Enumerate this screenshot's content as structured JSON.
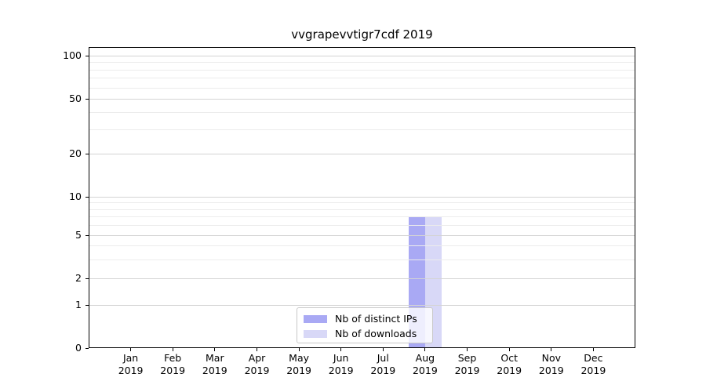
{
  "chart_data": {
    "type": "bar",
    "title": "vvgrapevvtigr7cdf 2019",
    "categories": [
      "Jan",
      "Feb",
      "Mar",
      "Apr",
      "May",
      "Jun",
      "Jul",
      "Aug",
      "Sep",
      "Oct",
      "Nov",
      "Dec"
    ],
    "x_tick_year": "2019",
    "series": [
      {
        "name": "Nb of distinct IPs",
        "color": "#a9a9f4",
        "values": [
          0,
          0,
          0,
          0,
          0,
          0,
          0,
          7,
          0,
          0,
          0,
          0
        ]
      },
      {
        "name": "Nb of downloads",
        "color": "#d8d8f7",
        "values": [
          0,
          0,
          0,
          0,
          0,
          0,
          0,
          7,
          0,
          0,
          0,
          0
        ]
      }
    ],
    "y_axis": {
      "scale": "symlog",
      "ticks": [
        0,
        1,
        2,
        5,
        10,
        20,
        50,
        100
      ],
      "minor_ticks": [
        3,
        4,
        6,
        7,
        8,
        9,
        30,
        40,
        60,
        70,
        80,
        90
      ],
      "ylim": [
        0,
        110
      ],
      "grid": true
    },
    "legend": {
      "position": "lower-center",
      "entries": [
        "Nb of distinct IPs",
        "Nb of downloads"
      ]
    }
  }
}
